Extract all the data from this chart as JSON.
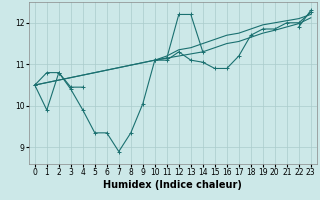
{
  "background_color": "#cce8e8",
  "grid_color": "#aacccc",
  "line_color": "#1a7070",
  "marker_color": "#1a7070",
  "xlabel": "Humidex (Indice chaleur)",
  "xlabel_fontsize": 7,
  "tick_fontsize": 5.5,
  "xlim": [
    -0.5,
    23.5
  ],
  "ylim": [
    8.6,
    12.5
  ],
  "yticks": [
    9,
    10,
    11,
    12
  ],
  "xticks": [
    0,
    1,
    2,
    3,
    4,
    5,
    6,
    7,
    8,
    9,
    10,
    11,
    12,
    13,
    14,
    15,
    16,
    17,
    18,
    19,
    20,
    21,
    22,
    23
  ],
  "series0": [
    10.5,
    9.9,
    10.8,
    10.4,
    9.9,
    9.35,
    9.35,
    8.9,
    9.35,
    10.05,
    11.1,
    11.1,
    11.3,
    11.1,
    11.05,
    10.9,
    10.9,
    11.2,
    11.7,
    11.85,
    11.85,
    12.0,
    12.0,
    12.25
  ],
  "series1": [
    10.5,
    10.8,
    10.8,
    10.45,
    10.45,
    null,
    null,
    null,
    null,
    null,
    11.1,
    11.15,
    12.2,
    12.2,
    11.3,
    null,
    null,
    null,
    null,
    null,
    null,
    null,
    11.9,
    12.3
  ],
  "series2_x": [
    0,
    10,
    11,
    12,
    13,
    14,
    15,
    16,
    17,
    18,
    19,
    20,
    21,
    22,
    23
  ],
  "series2_y": [
    10.5,
    11.1,
    11.2,
    11.35,
    11.4,
    11.5,
    11.6,
    11.7,
    11.75,
    11.85,
    11.95,
    12.0,
    12.05,
    12.1,
    12.2
  ],
  "series3_x": [
    0,
    10,
    11,
    12,
    13,
    14,
    15,
    16,
    17,
    18,
    19,
    20,
    21,
    22,
    23
  ],
  "series3_y": [
    10.5,
    11.1,
    11.15,
    11.2,
    11.25,
    11.3,
    11.4,
    11.5,
    11.55,
    11.65,
    11.75,
    11.82,
    11.9,
    11.98,
    12.12
  ]
}
